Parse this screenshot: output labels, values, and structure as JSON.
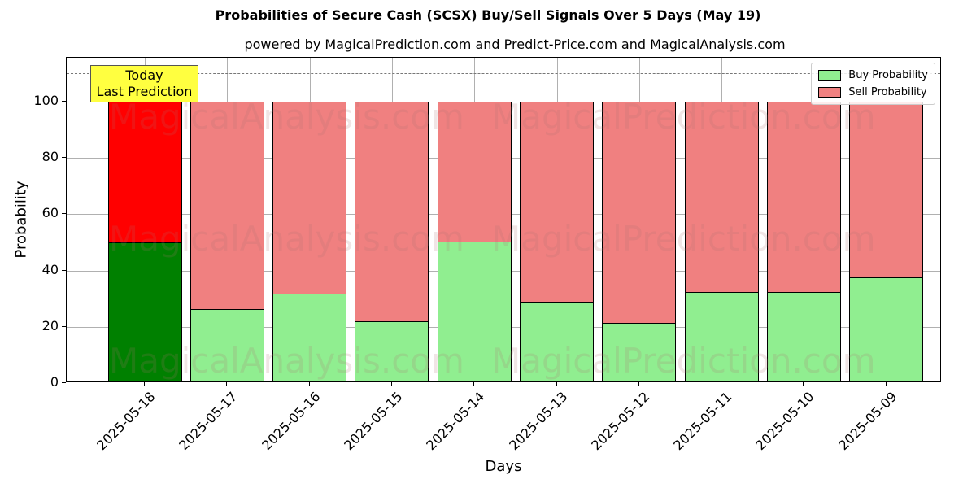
{
  "header": {
    "title": "Probabilities of Secure Cash (SCSX) Buy/Sell Signals Over 5 Days (May 19)",
    "subtitle": "powered by MagicalPrediction.com and Predict-Price.com and MagicalAnalysis.com"
  },
  "annotation": {
    "line1": "Today",
    "line2": "Last Prediction"
  },
  "legend": {
    "buy_label": "Buy Probability",
    "sell_label": "Sell Probability"
  },
  "axes": {
    "xlabel": "Days",
    "ylabel": "Probability",
    "yticks": [
      "0",
      "20",
      "40",
      "60",
      "80",
      "100"
    ]
  },
  "watermarks": [
    "MagicalAnalysis.com",
    "MagicalPrediction.com"
  ],
  "colors": {
    "buy_today": "#008000",
    "sell_today": "#ff0000",
    "buy": "#90ee90",
    "sell": "#f08080",
    "annotation_bg": "#ffff40"
  },
  "chart_data": {
    "type": "bar",
    "stacked": true,
    "title": "Probabilities of Secure Cash (SCSX) Buy/Sell Signals Over 5 Days (May 19)",
    "subtitle": "powered by MagicalPrediction.com and Predict-Price.com and MagicalAnalysis.com",
    "xlabel": "Days",
    "ylabel": "Probability",
    "ylim": [
      0,
      115.6
    ],
    "yticks": [
      0,
      20,
      40,
      60,
      80,
      100
    ],
    "grid": true,
    "legend_position": "upper right",
    "reference_line": {
      "y": 110,
      "style": "dashed",
      "color": "#777777"
    },
    "annotation": {
      "text": "Today\nLast Prediction",
      "x": "2025-05-18"
    },
    "categories": [
      "2025-05-18",
      "2025-05-17",
      "2025-05-16",
      "2025-05-15",
      "2025-05-14",
      "2025-05-13",
      "2025-05-12",
      "2025-05-11",
      "2025-05-10",
      "2025-05-09"
    ],
    "series": [
      {
        "name": "Buy Probability",
        "values": [
          50.1,
          26.4,
          31.8,
          22.1,
          50.4,
          28.8,
          21.5,
          32.5,
          32.5,
          37.7
        ]
      },
      {
        "name": "Sell Probability",
        "values": [
          49.9,
          73.6,
          68.2,
          77.9,
          49.6,
          71.2,
          78.5,
          67.5,
          67.5,
          62.3
        ]
      }
    ]
  }
}
